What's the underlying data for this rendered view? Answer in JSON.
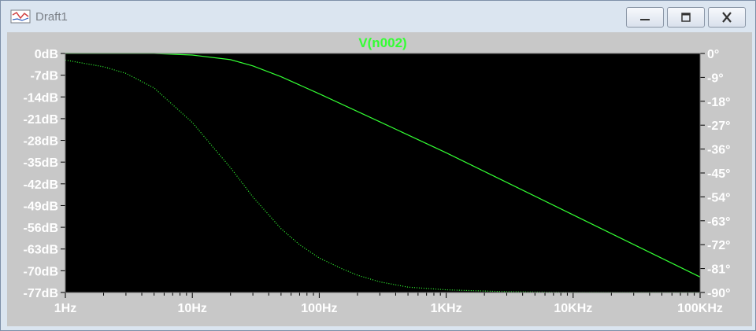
{
  "window": {
    "title": "Draft1"
  },
  "plot": {
    "trace_label": "V(n002)",
    "colors": {
      "background": "#000000",
      "trace": "#33ff33",
      "axis_text": "#ffffff",
      "frame": "#c8c8c8"
    }
  },
  "chart_data": {
    "type": "line",
    "title": "V(n002)",
    "x_scale": "log",
    "xlim": [
      1,
      100000
    ],
    "x_ticks": [
      "1Hz",
      "10Hz",
      "100Hz",
      "1KHz",
      "10KHz",
      "100KHz"
    ],
    "left_axis": {
      "ylim": [
        -77,
        0
      ],
      "ticks": [
        "0dB",
        "-7dB",
        "-14dB",
        "-21dB",
        "-28dB",
        "-35dB",
        "-42dB",
        "-49dB",
        "-56dB",
        "-63dB",
        "-70dB",
        "-77dB"
      ]
    },
    "right_axis": {
      "ylim": [
        -90,
        0
      ],
      "ticks": [
        "0°",
        "-9°",
        "-18°",
        "-27°",
        "-36°",
        "-45°",
        "-54°",
        "-63°",
        "-72°",
        "-81°",
        "-90°"
      ]
    },
    "series": [
      {
        "style": "solid",
        "axis": "left",
        "x": [
          1,
          3,
          5,
          10,
          20,
          30,
          50,
          100,
          300,
          1000,
          10000,
          100000
        ],
        "y": [
          0,
          0,
          0,
          -0.5,
          -2,
          -4,
          -7.5,
          -13,
          -22,
          -32,
          -52,
          -72
        ]
      },
      {
        "style": "dotted",
        "axis": "right",
        "x": [
          1,
          2,
          3,
          5,
          10,
          15,
          20,
          30,
          50,
          70,
          100,
          150,
          200,
          300,
          500,
          1000,
          3000,
          10000,
          100000
        ],
        "y": [
          -2.5,
          -5,
          -7.5,
          -13,
          -26,
          -36,
          -43,
          -54,
          -66,
          -72,
          -77,
          -81,
          -83.5,
          -86,
          -88,
          -89,
          -89.7,
          -90,
          -90
        ]
      }
    ]
  }
}
